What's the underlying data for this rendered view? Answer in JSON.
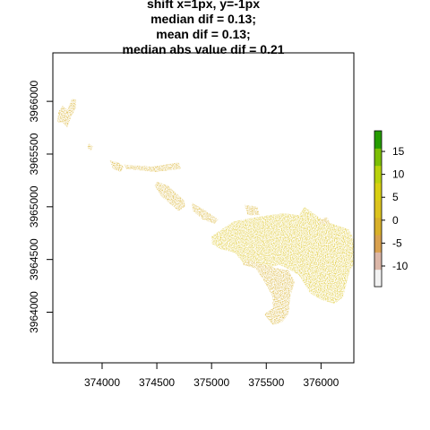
{
  "chart_data": {
    "type": "heatmap",
    "title_lines": [
      "shift x=1px, y=-1px",
      "median dif = 0.13;",
      "mean dif = 0.13;",
      "median abs value dif = 0.21"
    ],
    "xlabel": "",
    "ylabel": "",
    "xlim": [
      373550,
      376300
    ],
    "ylim": [
      3963520,
      3966460
    ],
    "x_ticks": [
      374000,
      374500,
      375000,
      375500,
      376000
    ],
    "y_ticks": [
      3964000,
      3964500,
      3965000,
      3965500,
      3966000
    ],
    "grid": false,
    "legend": {
      "type": "colorbar",
      "position": "right",
      "range": [
        -14.5,
        19.5
      ],
      "ticks": [
        15,
        10,
        5,
        0,
        -5,
        -10
      ],
      "colors": [
        "#f2f2f2",
        "#dcb7a8",
        "#d9a14f",
        "#d8b02a",
        "#dcc31e",
        "#d8cf12",
        "#b9d20c",
        "#7cbf05",
        "#259c00"
      ]
    },
    "regions": [
      {
        "points": [
          [
            373600,
            3965900
          ],
          [
            373640,
            3965960
          ],
          [
            373680,
            3965920
          ],
          [
            373720,
            3966020
          ],
          [
            373760,
            3966020
          ],
          [
            373760,
            3965940
          ],
          [
            373720,
            3965860
          ],
          [
            373680,
            3965750
          ],
          [
            373640,
            3965800
          ],
          [
            373590,
            3965800
          ]
        ],
        "value": 0.5
      },
      {
        "points": [
          [
            373880,
            3965600
          ],
          [
            373920,
            3965570
          ],
          [
            373900,
            3965530
          ],
          [
            373860,
            3965560
          ]
        ],
        "value": 0.3
      },
      {
        "points": [
          [
            374070,
            3965440
          ],
          [
            374150,
            3965420
          ],
          [
            374200,
            3965380
          ],
          [
            374170,
            3965330
          ],
          [
            374100,
            3965360
          ]
        ],
        "value": 0.3
      },
      {
        "points": [
          [
            374200,
            3965400
          ],
          [
            374450,
            3965380
          ],
          [
            374700,
            3965420
          ],
          [
            374720,
            3965360
          ],
          [
            374480,
            3965330
          ],
          [
            374220,
            3965360
          ]
        ],
        "value": 0.2
      },
      {
        "points": [
          [
            374500,
            3965240
          ],
          [
            374600,
            3965200
          ],
          [
            374750,
            3965060
          ],
          [
            374760,
            3965000
          ],
          [
            374700,
            3964960
          ],
          [
            374540,
            3965100
          ],
          [
            374480,
            3965200
          ]
        ],
        "value": 0.3
      },
      {
        "points": [
          [
            374820,
            3965040
          ],
          [
            374950,
            3964960
          ],
          [
            375060,
            3964880
          ],
          [
            375030,
            3964840
          ],
          [
            374920,
            3964880
          ],
          [
            374830,
            3964960
          ]
        ],
        "value": 0.2
      },
      {
        "points": [
          [
            375000,
            3964720
          ],
          [
            375200,
            3964860
          ],
          [
            375400,
            3964900
          ],
          [
            375650,
            3964940
          ],
          [
            375800,
            3964920
          ],
          [
            375850,
            3965000
          ],
          [
            375980,
            3964900
          ],
          [
            376100,
            3964840
          ],
          [
            376160,
            3964820
          ],
          [
            376260,
            3964780
          ],
          [
            376300,
            3964680
          ],
          [
            376300,
            3964460
          ],
          [
            376260,
            3964380
          ],
          [
            376200,
            3964140
          ],
          [
            376120,
            3964080
          ],
          [
            376000,
            3964120
          ],
          [
            375900,
            3964180
          ],
          [
            375800,
            3964350
          ],
          [
            375720,
            3964400
          ],
          [
            375620,
            3964450
          ],
          [
            375450,
            3964400
          ],
          [
            375300,
            3964450
          ],
          [
            375220,
            3964560
          ],
          [
            375080,
            3964600
          ],
          [
            375000,
            3964650
          ]
        ],
        "value": 0.8
      },
      {
        "points": [
          [
            375280,
            3964450
          ],
          [
            375400,
            3964420
          ],
          [
            375500,
            3964260
          ],
          [
            375560,
            3964140
          ],
          [
            375560,
            3964040
          ],
          [
            375480,
            3963980
          ],
          [
            375560,
            3963880
          ],
          [
            375640,
            3963900
          ],
          [
            375700,
            3963980
          ],
          [
            375720,
            3964150
          ],
          [
            375760,
            3964290
          ],
          [
            375700,
            3964400
          ],
          [
            375580,
            3964420
          ],
          [
            375450,
            3964460
          ],
          [
            375330,
            3964500
          ]
        ],
        "value": 0.5
      },
      {
        "points": [
          [
            375300,
            3965020
          ],
          [
            375420,
            3965000
          ],
          [
            375440,
            3964920
          ],
          [
            375330,
            3964920
          ]
        ],
        "value": 0.4
      },
      {
        "points": [
          [
            375980,
            3964880
          ],
          [
            376060,
            3964900
          ],
          [
            376080,
            3964840
          ],
          [
            375990,
            3964840
          ]
        ],
        "value": 0.4
      }
    ]
  }
}
